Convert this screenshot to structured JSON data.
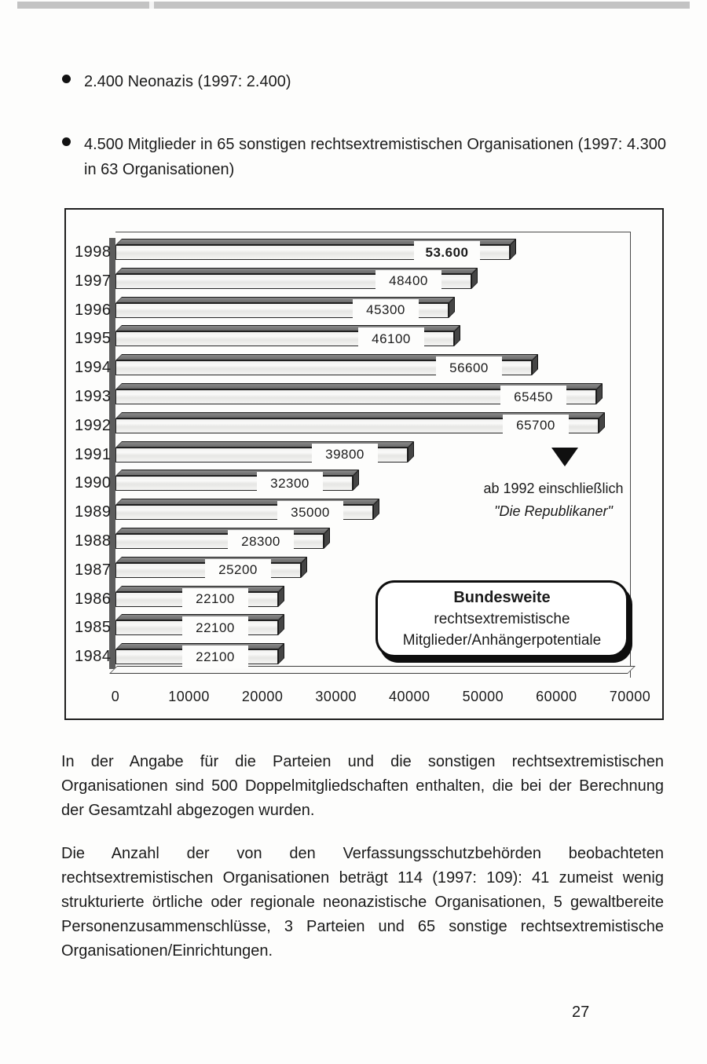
{
  "bullets": [
    {
      "text": "2.400 Neonazis (1997: 2.400)"
    },
    {
      "text": "4.500 Mitglieder in 65 sonstigen rechtsextremistischen Organisationen (1997: 4.300 in 63 Organisationen)"
    }
  ],
  "chart_data": {
    "type": "bar",
    "orientation": "horizontal",
    "bar_style": "3d-horizontal",
    "categories": [
      "1998",
      "1997",
      "1996",
      "1995",
      "1994",
      "1993",
      "1992",
      "1991",
      "1990",
      "1989",
      "1988",
      "1987",
      "1986",
      "1985",
      "1984"
    ],
    "values": [
      53600,
      48400,
      45300,
      46100,
      56600,
      65450,
      65700,
      39800,
      32300,
      35000,
      28300,
      25200,
      22100,
      22100,
      22100
    ],
    "value_labels": [
      "53.600",
      "48400",
      "45300",
      "46100",
      "56600",
      "65450",
      "65700",
      "39800",
      "32300",
      "35000",
      "28300",
      "25200",
      "22100",
      "22100",
      "22100"
    ],
    "emphasized_label_index": 0,
    "x_ticks": [
      0,
      10000,
      20000,
      30000,
      40000,
      50000,
      60000,
      70000
    ],
    "x_tick_labels": [
      "0",
      "10000",
      "20000",
      "30000",
      "40000",
      "50000",
      "60000",
      "70000"
    ],
    "xlim": [
      0,
      70000
    ],
    "grid": false,
    "legend_position": "inside-lower-right",
    "annotation": {
      "marker": "triangle-down",
      "line1": "ab 1992 einschließlich",
      "line2": "\"Die Republikaner\""
    },
    "legend_box": {
      "line1": "Bundesweite",
      "line2": "rechtsextremistische",
      "line3": "Mitglieder/Anhängerpotentiale"
    },
    "colors": {
      "bar_front": "#f1f1f0",
      "bar_top": "#6b6b6b",
      "bar_side": "#454545",
      "outline": "#1f1f1f",
      "text": "#1b1b1b"
    }
  },
  "paragraphs": [
    "In der Angabe für die Parteien und die sonstigen rechtsextremistischen Organisationen sind 500 Doppelmitgliedschaften enthalten, die bei der Berechnung der Gesamtzahl abgezogen wurden.",
    "Die Anzahl der von den Verfassungsschutzbehörden beobachteten rechtsextremistischen Organisationen beträgt 114 (1997: 109): 41 zumeist wenig strukturierte örtliche oder regionale neonazistische Organisationen, 5 gewaltbereite Personenzusammenschlüsse, 3 Parteien und 65 sonstige rechtsextremistische Organisationen/Einrichtungen."
  ],
  "page_number": "27"
}
